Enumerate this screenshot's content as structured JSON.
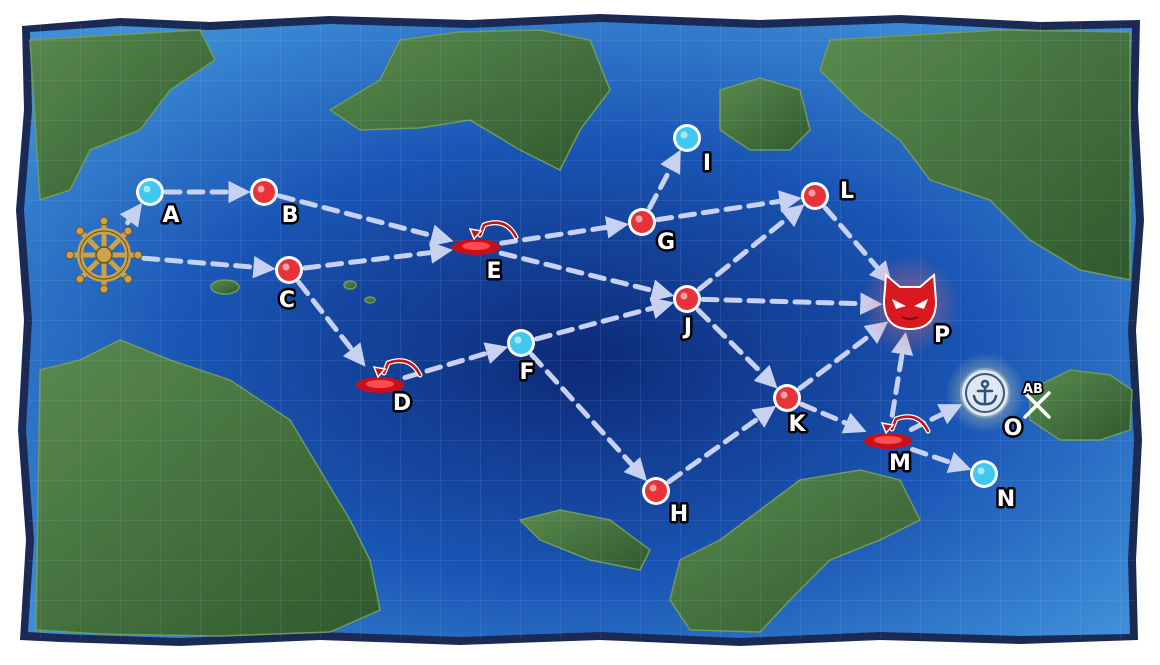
{
  "colors": {
    "ocean_deep": "#0d2a78",
    "ocean_mid": "#1a56b5",
    "ocean_shallow": "#3f8fd8",
    "land": "#4c7a44",
    "land_dark": "#2f5a2e",
    "route": "#c8d2f0",
    "node_battle": "#e8323a",
    "node_safe": "#3fc9f2",
    "boss": "#d9181f",
    "whirlpool": "#c8101a",
    "base_gold": "#c9a24a",
    "border": "#1a2a55"
  },
  "icons": {
    "start": "ship-wheel-icon",
    "boss": "demon-face-icon",
    "base": "anchor-icon",
    "air": "crossed-swords-icon",
    "whirlpool": "whirlpool-arrow-icon"
  },
  "nodes": [
    {
      "id": "A",
      "label": "A",
      "type": "safe"
    },
    {
      "id": "B",
      "label": "B",
      "type": "battle"
    },
    {
      "id": "C",
      "label": "C",
      "type": "battle"
    },
    {
      "id": "D",
      "label": "D",
      "type": "whirlpool"
    },
    {
      "id": "E",
      "label": "E",
      "type": "whirlpool"
    },
    {
      "id": "F",
      "label": "F",
      "type": "safe"
    },
    {
      "id": "G",
      "label": "G",
      "type": "battle"
    },
    {
      "id": "H",
      "label": "H",
      "type": "battle"
    },
    {
      "id": "I",
      "label": "I",
      "type": "safe"
    },
    {
      "id": "J",
      "label": "J",
      "type": "battle"
    },
    {
      "id": "K",
      "label": "K",
      "type": "battle"
    },
    {
      "id": "L",
      "label": "L",
      "type": "battle"
    },
    {
      "id": "M",
      "label": "M",
      "type": "whirlpool"
    },
    {
      "id": "N",
      "label": "N",
      "type": "safe"
    },
    {
      "id": "O",
      "label": "O",
      "type": "base"
    },
    {
      "id": "P",
      "label": "P",
      "type": "boss"
    }
  ],
  "air_label": "AB",
  "routes": [
    [
      "start",
      "A"
    ],
    [
      "A",
      "B"
    ],
    [
      "start",
      "C"
    ],
    [
      "B",
      "E"
    ],
    [
      "C",
      "E"
    ],
    [
      "C",
      "D"
    ],
    [
      "E",
      "G"
    ],
    [
      "E",
      "J"
    ],
    [
      "G",
      "I"
    ],
    [
      "G",
      "L"
    ],
    [
      "D",
      "F"
    ],
    [
      "F",
      "J"
    ],
    [
      "F",
      "H"
    ],
    [
      "H",
      "K"
    ],
    [
      "J",
      "L"
    ],
    [
      "J",
      "P"
    ],
    [
      "J",
      "K"
    ],
    [
      "L",
      "P"
    ],
    [
      "K",
      "P"
    ],
    [
      "K",
      "M"
    ],
    [
      "M",
      "P"
    ],
    [
      "M",
      "O"
    ],
    [
      "M",
      "N"
    ]
  ]
}
